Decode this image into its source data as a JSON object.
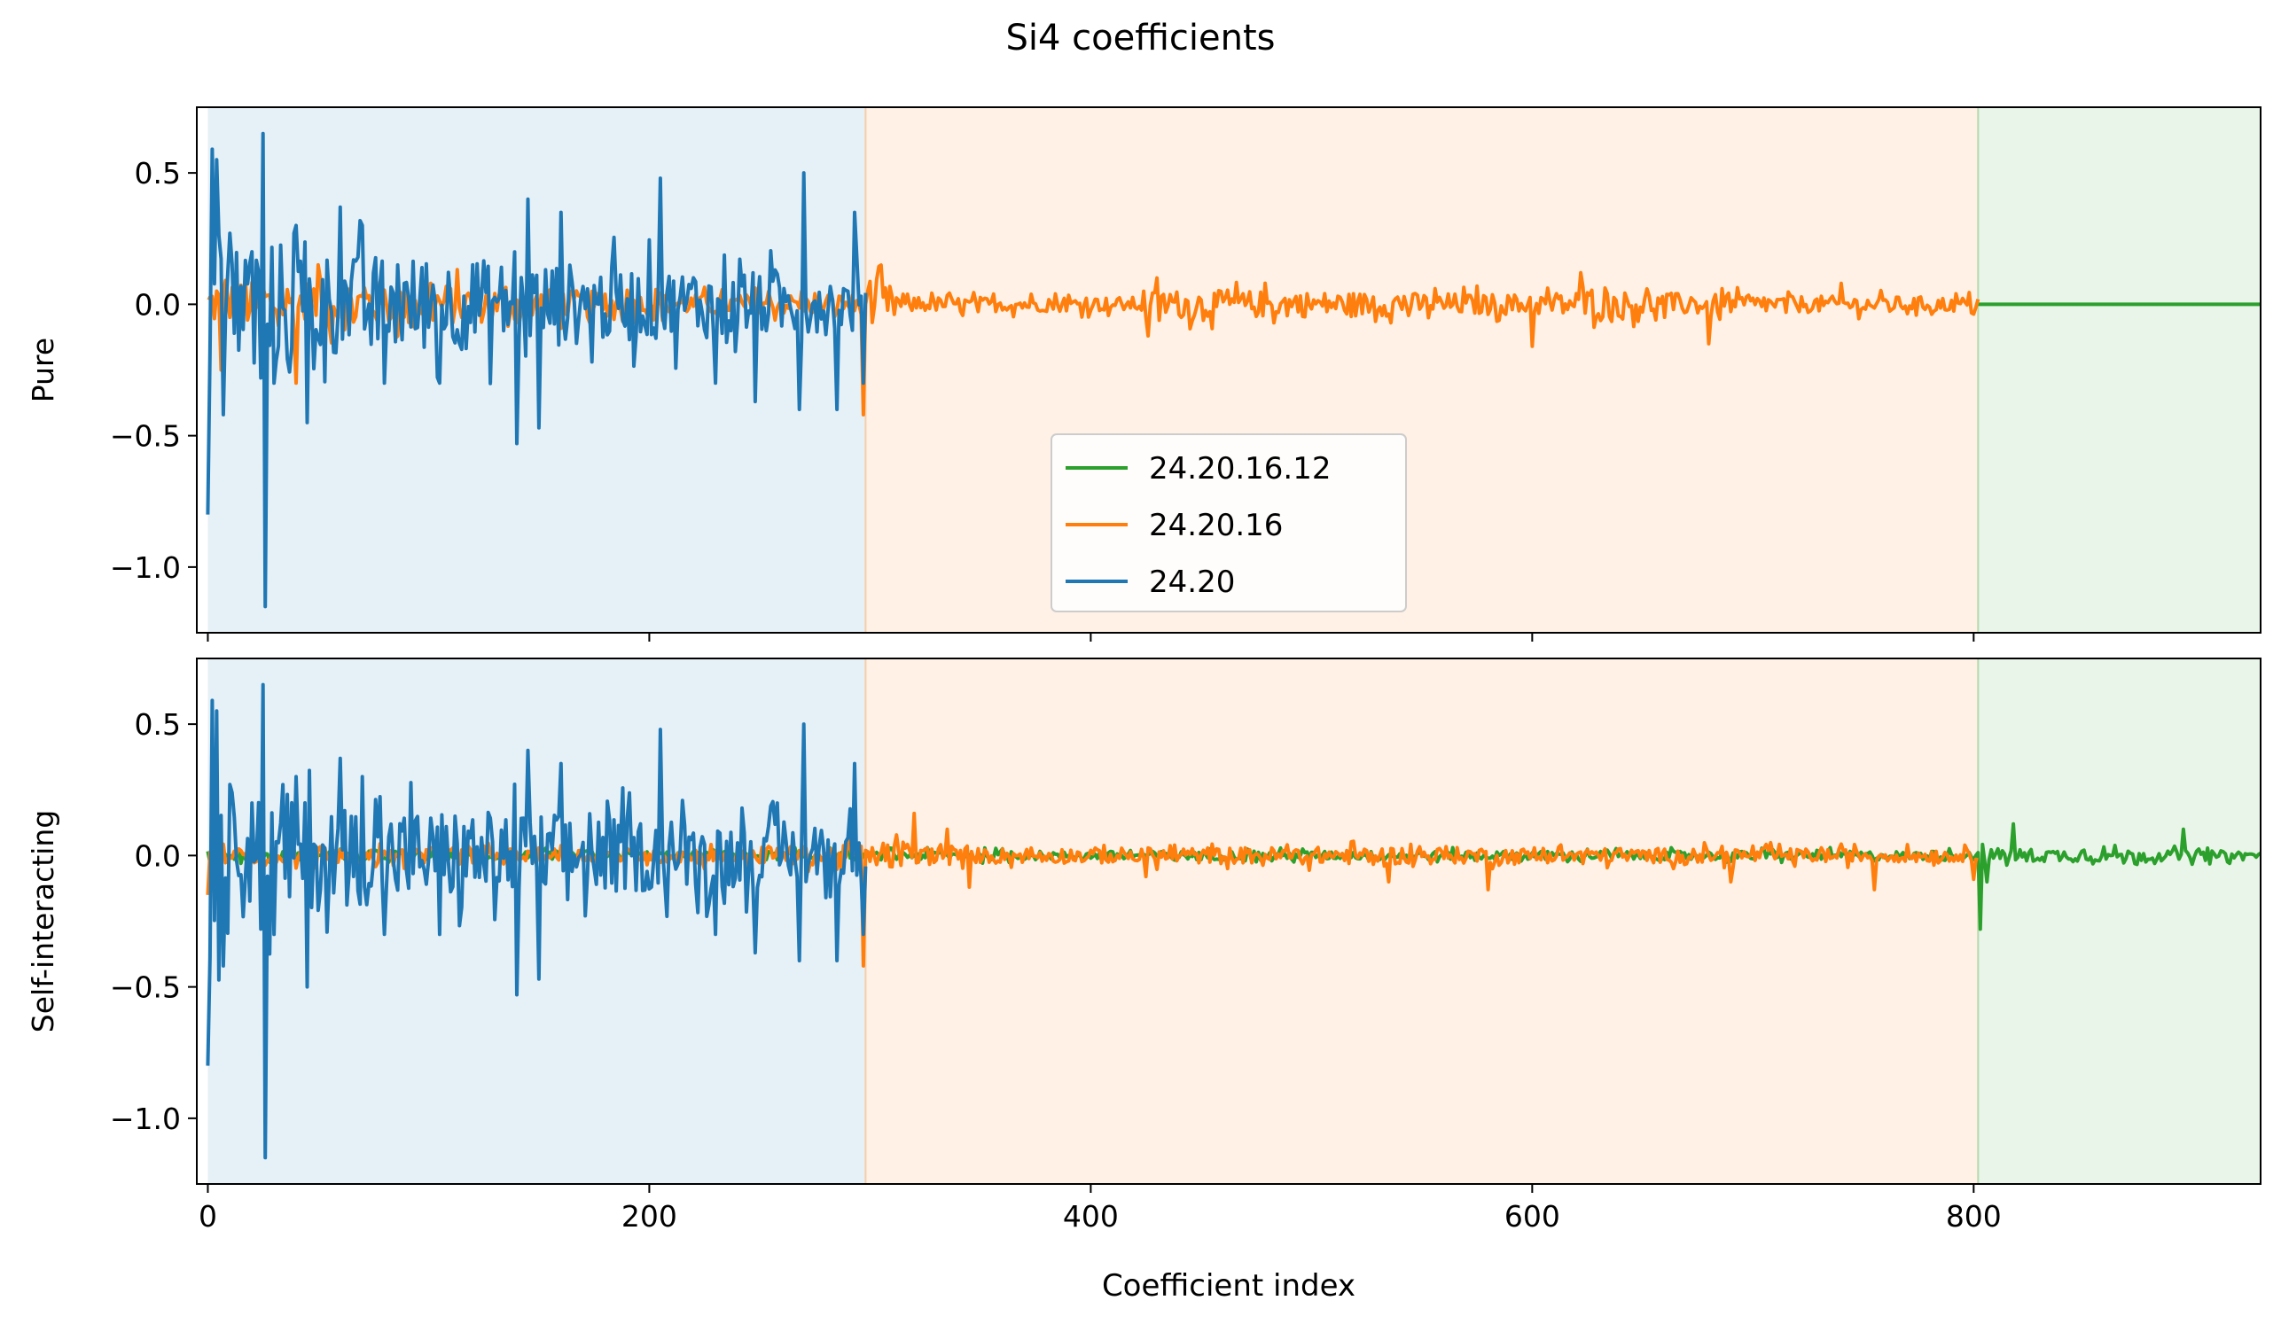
{
  "chart_data": {
    "type": "line",
    "title": "Si4 coefficients",
    "xlabel": "Coefficient index",
    "xlim": [
      -5,
      930
    ],
    "xticks": [
      0,
      200,
      400,
      600,
      800
    ],
    "yticks": [
      0.5,
      0.0,
      -0.5,
      -1.0
    ],
    "ylim": [
      -1.25,
      0.75
    ],
    "grid": false,
    "shaded_regions": [
      {
        "x": [
          0,
          298
        ],
        "color": "#1f77b4"
      },
      {
        "x": [
          298,
          802
        ],
        "color": "#ff7f0e"
      },
      {
        "x": [
          802,
          930
        ],
        "color": "#2ca02c"
      }
    ],
    "legend": {
      "placement": "lower center (upper panel)",
      "entries": [
        {
          "label": "24.20.16.12",
          "color": "#2ca02c"
        },
        {
          "label": "24.20.16",
          "color": "#ff7f0e"
        },
        {
          "label": "24.20",
          "color": "#1f77b4"
        }
      ]
    },
    "panels": [
      {
        "ylabel": "Pure",
        "series": [
          {
            "name": "24.20.16.12",
            "color": "#2ca02c",
            "x_range": [
              802,
              930
            ],
            "points": [
              [
                802,
                0.0
              ],
              [
                930,
                0.0
              ]
            ]
          },
          {
            "name": "24.20.16",
            "color": "#ff7f0e",
            "x_range": [
              0,
              802
            ],
            "amplitude": [
              [
                0,
                0.15
              ],
              [
                60,
                0.18
              ],
              [
                200,
                0.07
              ],
              [
                298,
                0.07
              ],
              [
                300,
                0.2
              ],
              [
                320,
                0.05
              ],
              [
                420,
                0.05
              ],
              [
                430,
                0.1
              ],
              [
                600,
                0.07
              ],
              [
                620,
                0.1
              ],
              [
                700,
                0.06
              ],
              [
                802,
                0.05
              ]
            ],
            "extremes": [
              [
                4,
                0.05
              ],
              [
                6,
                -0.25
              ],
              [
                40,
                -0.3
              ],
              [
                50,
                0.15
              ],
              [
                60,
                0.22
              ],
              [
                297,
                -0.42
              ],
              [
                299,
                0.05
              ],
              [
                426,
                -0.12
              ],
              [
                430,
                0.1
              ],
              [
                600,
                -0.16
              ],
              [
                622,
                0.12
              ],
              [
                680,
                -0.15
              ],
              [
                740,
                0.08
              ]
            ]
          },
          {
            "name": "24.20",
            "color": "#1f77b4",
            "x_range": [
              0,
              298
            ],
            "amplitude": [
              [
                0,
                0.5
              ],
              [
                30,
                0.45
              ],
              [
                60,
                0.35
              ],
              [
                150,
                0.3
              ],
              [
                200,
                0.25
              ],
              [
                298,
                0.2
              ]
            ],
            "extremes": [
              [
                0,
                -0.8
              ],
              [
                2,
                0.59
              ],
              [
                4,
                0.55
              ],
              [
                7,
                -0.42
              ],
              [
                10,
                0.27
              ],
              [
                20,
                0.2
              ],
              [
                24,
                -0.28
              ],
              [
                25,
                0.65
              ],
              [
                26,
                -1.15
              ],
              [
                30,
                -0.3
              ],
              [
                40,
                0.3
              ],
              [
                45,
                -0.45
              ],
              [
                60,
                0.37
              ],
              [
                70,
                0.3
              ],
              [
                80,
                -0.3
              ],
              [
                105,
                -0.3
              ],
              [
                140,
                -0.53
              ],
              [
                145,
                0.4
              ],
              [
                150,
                -0.47
              ],
              [
                160,
                0.35
              ],
              [
                205,
                0.48
              ],
              [
                230,
                -0.3
              ],
              [
                248,
                -0.37
              ],
              [
                268,
                -0.4
              ],
              [
                270,
                0.5
              ],
              [
                285,
                -0.4
              ],
              [
                293,
                0.35
              ],
              [
                297,
                -0.3
              ]
            ]
          }
        ]
      },
      {
        "ylabel": "Self-interacting",
        "series": [
          {
            "name": "24.20.16.12",
            "color": "#2ca02c",
            "x_range": [
              0,
              930
            ],
            "amplitude": [
              [
                0,
                0.03
              ],
              [
                802,
                0.03
              ],
              [
                803,
                0.05
              ],
              [
                930,
                0.03
              ]
            ],
            "extremes": [
              [
                803,
                -0.28
              ],
              [
                806,
                -0.1
              ],
              [
                818,
                0.12
              ],
              [
                895,
                0.1
              ]
            ]
          },
          {
            "name": "24.20.16",
            "color": "#ff7f0e",
            "x_range": [
              0,
              802
            ],
            "amplitude": [
              [
                0,
                0.05
              ],
              [
                200,
                0.05
              ],
              [
                298,
                0.07
              ],
              [
                320,
                0.1
              ],
              [
                330,
                0.05
              ],
              [
                540,
                0.06
              ],
              [
                600,
                0.05
              ],
              [
                700,
                0.05
              ],
              [
                802,
                0.04
              ]
            ],
            "extremes": [
              [
                0,
                -0.15
              ],
              [
                297,
                -0.42
              ],
              [
                320,
                0.16
              ],
              [
                335,
                0.1
              ],
              [
                345,
                -0.12
              ],
              [
                425,
                -0.08
              ],
              [
                535,
                -0.1
              ],
              [
                580,
                -0.13
              ],
              [
                690,
                -0.1
              ],
              [
                755,
                -0.13
              ],
              [
                800,
                -0.09
              ]
            ]
          },
          {
            "name": "24.20",
            "color": "#1f77b4",
            "x_range": [
              0,
              298
            ],
            "amplitude": [
              [
                0,
                0.5
              ],
              [
                30,
                0.45
              ],
              [
                60,
                0.35
              ],
              [
                150,
                0.3
              ],
              [
                200,
                0.25
              ],
              [
                298,
                0.2
              ]
            ],
            "extremes": [
              [
                0,
                -0.8
              ],
              [
                2,
                0.59
              ],
              [
                4,
                0.55
              ],
              [
                7,
                -0.42
              ],
              [
                10,
                0.27
              ],
              [
                20,
                0.2
              ],
              [
                24,
                -0.28
              ],
              [
                25,
                0.65
              ],
              [
                26,
                -1.15
              ],
              [
                30,
                -0.3
              ],
              [
                40,
                0.3
              ],
              [
                45,
                -0.5
              ],
              [
                60,
                0.37
              ],
              [
                70,
                0.3
              ],
              [
                80,
                -0.3
              ],
              [
                105,
                -0.3
              ],
              [
                140,
                -0.53
              ],
              [
                145,
                0.4
              ],
              [
                150,
                -0.47
              ],
              [
                160,
                0.35
              ],
              [
                205,
                0.48
              ],
              [
                230,
                -0.3
              ],
              [
                248,
                -0.37
              ],
              [
                268,
                -0.4
              ],
              [
                270,
                0.5
              ],
              [
                285,
                -0.4
              ],
              [
                293,
                0.35
              ],
              [
                297,
                -0.3
              ]
            ]
          }
        ]
      }
    ]
  }
}
